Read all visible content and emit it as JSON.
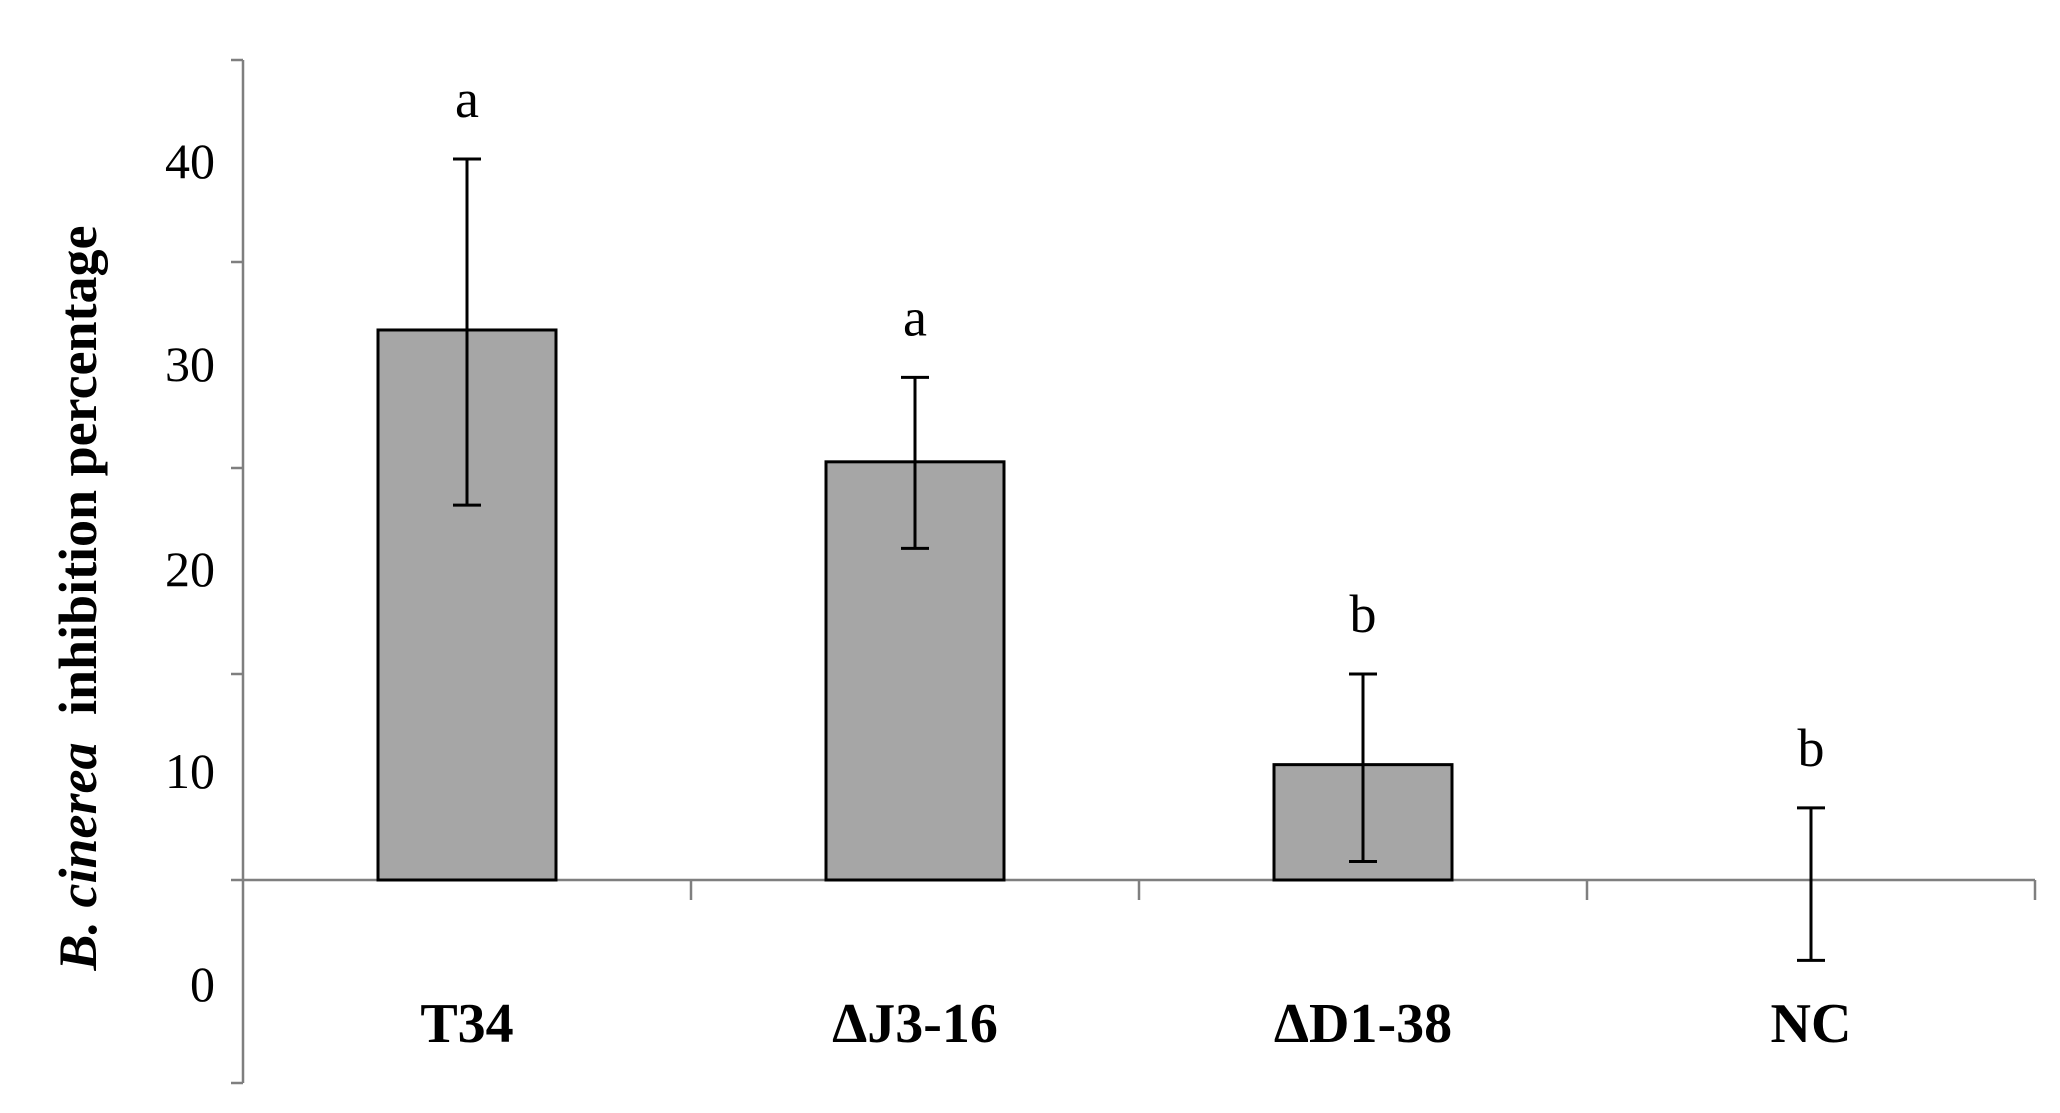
{
  "chart_data": {
    "type": "bar",
    "title": "",
    "ylabel_italic": "B. cinerea",
    "ylabel_rest": "inhibition percentage",
    "xlabel": "",
    "ylim": [
      0,
      40
    ],
    "yticks": [
      0,
      10,
      20,
      30,
      40
    ],
    "categories": [
      "T34",
      "ΔJ3-16",
      "ΔD1-38",
      "NC"
    ],
    "values": [
      26.7,
      20.3,
      5.6,
      0
    ],
    "error_low": [
      18.2,
      16.1,
      0.9,
      -3.9
    ],
    "error_high": [
      35.0,
      24.4,
      10.0,
      3.5
    ],
    "significance": [
      "a",
      "a",
      "b",
      "b"
    ],
    "bar_color": "#a6a6a6",
    "axis_color": "#7f7f7f",
    "grid": false,
    "legend": "none"
  }
}
